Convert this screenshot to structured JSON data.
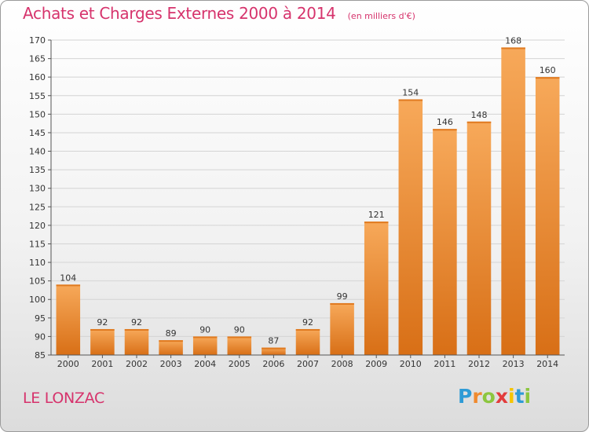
{
  "chart_data": {
    "type": "bar",
    "title": "Achats et Charges Externes 2000 à 2014",
    "subtitle": "(en milliers d'€)",
    "categories": [
      "2000",
      "2001",
      "2002",
      "2003",
      "2004",
      "2005",
      "2006",
      "2007",
      "2008",
      "2009",
      "2010",
      "2011",
      "2012",
      "2013",
      "2014"
    ],
    "values": [
      104,
      92,
      92,
      89,
      90,
      90,
      87,
      92,
      99,
      121,
      154,
      146,
      148,
      168,
      160
    ],
    "ylim": [
      85,
      170
    ],
    "yticks": [
      85,
      90,
      95,
      100,
      105,
      110,
      115,
      120,
      125,
      130,
      135,
      140,
      145,
      150,
      155,
      160,
      165,
      170
    ],
    "grid": true,
    "bar_color": "#f08a2e"
  },
  "footer": {
    "commune": "LE LONZAC",
    "brand_letters": [
      "P",
      "r",
      "o",
      "x",
      "i",
      "t",
      "i"
    ],
    "brand_colors": [
      "#2e9bd6",
      "#f08a2e",
      "#8cc63f",
      "#e23c3c",
      "#f5c400",
      "#2e9bd6",
      "#8cc63f"
    ]
  }
}
